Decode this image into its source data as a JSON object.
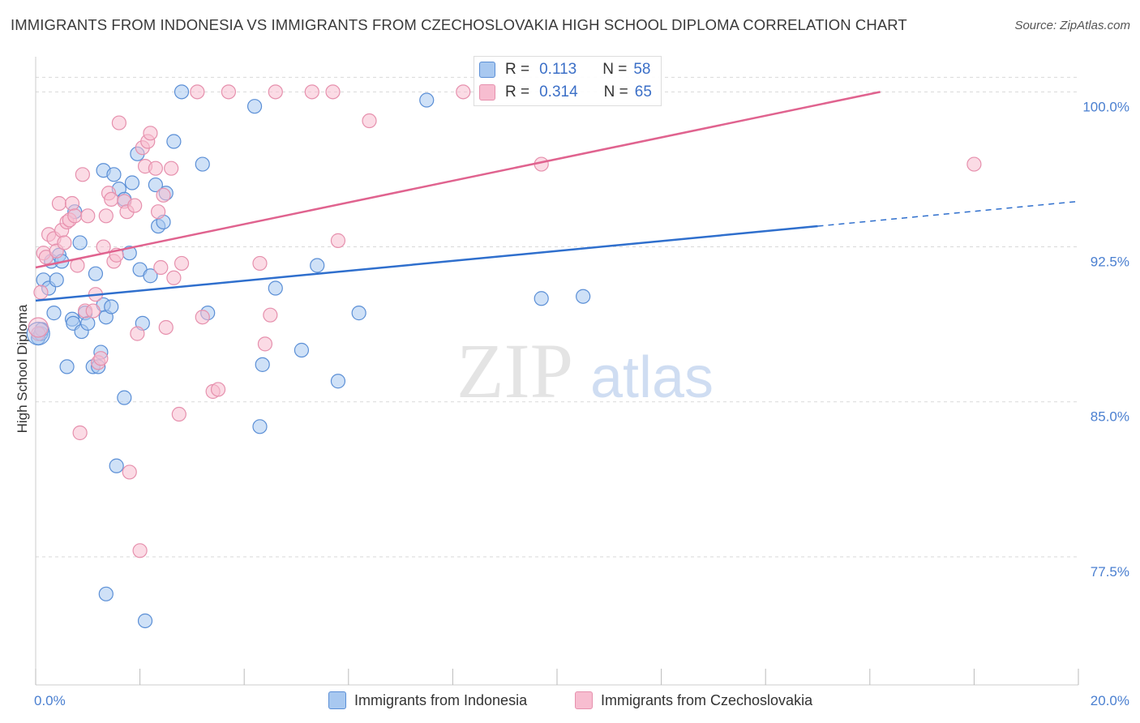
{
  "title": "IMMIGRANTS FROM INDONESIA VS IMMIGRANTS FROM CZECHOSLOVAKIA HIGH SCHOOL DIPLOMA CORRELATION CHART",
  "source": "Source: ZipAtlas.com",
  "watermark": {
    "zip": "ZIP",
    "atlas": "atlas"
  },
  "legend": {
    "rows": [
      {
        "r_label": "R =",
        "r_value": "0.113",
        "n_label": "N =",
        "n_value": "58"
      },
      {
        "r_label": "R =",
        "r_value": "0.314",
        "n_label": "N =",
        "n_value": "65"
      }
    ]
  },
  "colors": {
    "indonesia_fill": "#a8c8f0",
    "indonesia_stroke": "#5b8fd6",
    "indonesia_line": "#2f6fcd",
    "czech_fill": "#f7bdd0",
    "czech_stroke": "#e690ad",
    "czech_line": "#e0638f",
    "tick_text": "#4a7fd0",
    "grid": "#d9d9d9"
  },
  "chart_data": {
    "type": "scatter",
    "ylabel": "High School Diploma",
    "xlabel": "",
    "xlim": [
      0,
      20
    ],
    "ylim": [
      71.3,
      101.7
    ],
    "x_tick_labels": [
      "0.0%",
      "20.0%"
    ],
    "y_ticks": [
      77.5,
      85.0,
      92.5,
      100.0
    ],
    "y_tick_labels": [
      "77.5%",
      "85.0%",
      "92.5%",
      "100.0%"
    ],
    "grid": true,
    "legend_position": "bottom",
    "series": [
      {
        "name": "Immigrants from Indonesia",
        "trend": {
          "x0": 0.0,
          "y0": 89.9,
          "x1": 15.0,
          "y1": 93.5,
          "dash_to_x": 20.0,
          "dash_to_y": 94.7
        },
        "points": [
          [
            0.05,
            88.1
          ],
          [
            0.1,
            88.3
          ],
          [
            0.12,
            88.5
          ],
          [
            0.15,
            90.9
          ],
          [
            0.25,
            90.5
          ],
          [
            0.3,
            91.8
          ],
          [
            0.35,
            89.3
          ],
          [
            0.4,
            90.9
          ],
          [
            0.45,
            92.1
          ],
          [
            0.5,
            91.8
          ],
          [
            0.6,
            86.7
          ],
          [
            0.7,
            89.0
          ],
          [
            0.72,
            88.8
          ],
          [
            0.85,
            92.7
          ],
          [
            0.88,
            88.4
          ],
          [
            0.95,
            89.3
          ],
          [
            1.0,
            88.8
          ],
          [
            1.1,
            86.7
          ],
          [
            1.15,
            91.2
          ],
          [
            1.2,
            86.7
          ],
          [
            1.25,
            87.4
          ],
          [
            1.3,
            89.7
          ],
          [
            1.3,
            96.2
          ],
          [
            1.35,
            89.1
          ],
          [
            1.45,
            89.6
          ],
          [
            1.5,
            96.0
          ],
          [
            1.55,
            81.9
          ],
          [
            1.6,
            95.3
          ],
          [
            1.7,
            94.8
          ],
          [
            1.7,
            85.2
          ],
          [
            1.8,
            92.2
          ],
          [
            1.85,
            95.6
          ],
          [
            1.95,
            97.0
          ],
          [
            2.0,
            91.4
          ],
          [
            2.05,
            88.8
          ],
          [
            2.1,
            74.4
          ],
          [
            2.2,
            91.1
          ],
          [
            2.3,
            95.5
          ],
          [
            2.35,
            93.5
          ],
          [
            2.45,
            93.7
          ],
          [
            2.5,
            95.1
          ],
          [
            2.65,
            97.6
          ],
          [
            2.8,
            100.0
          ],
          [
            3.2,
            96.5
          ],
          [
            3.3,
            89.3
          ],
          [
            4.2,
            99.3
          ],
          [
            4.3,
            83.8
          ],
          [
            4.35,
            86.8
          ],
          [
            4.6,
            90.5
          ],
          [
            5.1,
            87.5
          ],
          [
            5.4,
            91.6
          ],
          [
            5.8,
            86.0
          ],
          [
            6.2,
            89.3
          ],
          [
            7.5,
            99.6
          ],
          [
            9.7,
            90.0
          ],
          [
            10.5,
            90.1
          ],
          [
            1.35,
            75.7
          ],
          [
            0.75,
            94.2
          ]
        ]
      },
      {
        "name": "Immigrants from Czechoslovakia",
        "trend": {
          "x0": 0.0,
          "y0": 91.5,
          "x1": 16.2,
          "y1": 100.0
        },
        "points": [
          [
            0.05,
            88.3
          ],
          [
            0.1,
            90.3
          ],
          [
            0.15,
            92.2
          ],
          [
            0.2,
            92.0
          ],
          [
            0.25,
            93.1
          ],
          [
            0.35,
            92.9
          ],
          [
            0.4,
            92.3
          ],
          [
            0.45,
            94.6
          ],
          [
            0.5,
            93.3
          ],
          [
            0.55,
            92.7
          ],
          [
            0.6,
            93.7
          ],
          [
            0.65,
            93.8
          ],
          [
            0.7,
            94.6
          ],
          [
            0.75,
            94.0
          ],
          [
            0.8,
            91.6
          ],
          [
            0.85,
            83.5
          ],
          [
            0.9,
            96.0
          ],
          [
            0.95,
            89.4
          ],
          [
            1.0,
            94.0
          ],
          [
            1.1,
            89.4
          ],
          [
            1.15,
            90.2
          ],
          [
            1.2,
            86.9
          ],
          [
            1.25,
            87.1
          ],
          [
            1.3,
            92.5
          ],
          [
            1.35,
            94.0
          ],
          [
            1.4,
            95.1
          ],
          [
            1.45,
            94.8
          ],
          [
            1.5,
            91.8
          ],
          [
            1.55,
            92.1
          ],
          [
            1.6,
            98.5
          ],
          [
            1.7,
            94.7
          ],
          [
            1.75,
            94.2
          ],
          [
            1.8,
            81.6
          ],
          [
            1.9,
            94.5
          ],
          [
            1.95,
            88.3
          ],
          [
            2.0,
            77.8
          ],
          [
            2.05,
            97.3
          ],
          [
            2.1,
            96.4
          ],
          [
            2.15,
            97.6
          ],
          [
            2.2,
            98.0
          ],
          [
            2.3,
            96.3
          ],
          [
            2.35,
            94.2
          ],
          [
            2.4,
            91.5
          ],
          [
            2.45,
            95.0
          ],
          [
            2.5,
            88.6
          ],
          [
            2.6,
            96.3
          ],
          [
            2.65,
            91.0
          ],
          [
            2.75,
            84.4
          ],
          [
            2.8,
            91.7
          ],
          [
            3.1,
            100.0
          ],
          [
            3.2,
            89.1
          ],
          [
            3.4,
            85.5
          ],
          [
            3.5,
            85.6
          ],
          [
            3.7,
            100.0
          ],
          [
            4.3,
            91.7
          ],
          [
            4.4,
            87.8
          ],
          [
            4.5,
            89.2
          ],
          [
            4.6,
            100.0
          ],
          [
            5.3,
            100.0
          ],
          [
            5.7,
            100.0
          ],
          [
            5.8,
            92.8
          ],
          [
            6.4,
            98.6
          ],
          [
            8.2,
            100.0
          ],
          [
            9.7,
            96.5
          ],
          [
            18.0,
            96.5
          ]
        ]
      }
    ]
  }
}
